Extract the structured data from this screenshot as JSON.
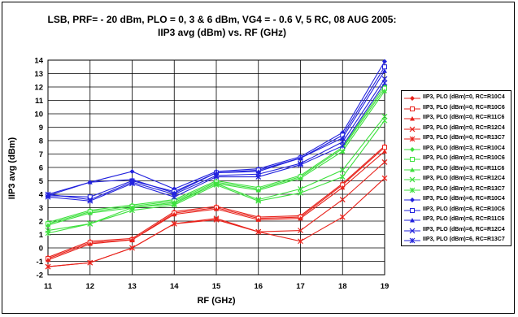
{
  "chart_data": {
    "type": "line",
    "title_line1": "LSB, PRF= - 20 dBm, PLO = 0, 3 & 6 dBm, VG4 = - 0.6 V, 5 RC, 08 AUG 2005:",
    "title_line2": "IIP3 avg (dBm) vs. RF (GHz)",
    "xlabel": "RF (GHz)",
    "ylabel": "IIP3 avg (dBm)",
    "xlim": [
      11,
      19
    ],
    "ylim": [
      -2,
      14
    ],
    "x_ticks": [
      "11",
      "12",
      "13",
      "14",
      "15",
      "16",
      "17",
      "18",
      "19"
    ],
    "y_ticks": [
      "-2",
      "-1",
      "0",
      "1",
      "2",
      "3",
      "4",
      "5",
      "6",
      "7",
      "8",
      "9",
      "10",
      "11",
      "12",
      "13",
      "14"
    ],
    "grid": true,
    "legend_position": "right",
    "x": [
      11,
      12,
      13,
      14,
      15,
      16,
      17,
      18,
      19
    ],
    "series": [
      {
        "name": "IIP3, PLO (dBm)=0, RC=R10C4",
        "color": "#e8221b",
        "marker": "diamond",
        "values": [
          -0.7,
          0.5,
          0.7,
          2.7,
          3.1,
          2.3,
          2.4,
          4.8,
          7.6
        ]
      },
      {
        "name": "IIP3, PLO (dBm)=0, RC=R10C6",
        "color": "#e8221b",
        "marker": "square",
        "values": [
          -0.8,
          0.4,
          0.6,
          2.6,
          3.0,
          2.2,
          2.3,
          4.7,
          7.5
        ]
      },
      {
        "name": "IIP3, PLO (dBm)=0, RC=R11C6",
        "color": "#e8221b",
        "marker": "triangle",
        "values": [
          -0.9,
          0.3,
          0.6,
          2.5,
          2.9,
          2.1,
          2.2,
          4.5,
          7.2
        ]
      },
      {
        "name": "IIP3, PLO (dBm)=0, RC=R12C4",
        "color": "#e8221b",
        "marker": "x",
        "values": [
          -1.4,
          -1.1,
          0.0,
          1.8,
          2.2,
          1.2,
          1.3,
          3.6,
          6.4
        ]
      },
      {
        "name": "IIP3, PLO (dBm)=0, RC=R13C7",
        "color": "#e8221b",
        "marker": "star",
        "values": [
          -1.4,
          -1.1,
          0.0,
          1.8,
          2.1,
          1.2,
          0.5,
          2.3,
          5.2
        ]
      },
      {
        "name": "IIP3, PLO (dBm)=3, RC=R10C4",
        "color": "#3ee03e",
        "marker": "diamond",
        "values": [
          1.9,
          2.8,
          3.2,
          3.6,
          5.0,
          4.5,
          5.4,
          7.5,
          12.1
        ]
      },
      {
        "name": "IIP3, PLO (dBm)=3, RC=R10C6",
        "color": "#3ee03e",
        "marker": "square",
        "values": [
          1.8,
          2.7,
          3.1,
          3.5,
          4.9,
          4.4,
          5.3,
          7.4,
          11.9
        ]
      },
      {
        "name": "IIP3, PLO (dBm)=3, RC=R11C6",
        "color": "#3ee03e",
        "marker": "triangle",
        "values": [
          1.7,
          2.6,
          3.0,
          3.4,
          4.8,
          4.3,
          5.2,
          7.2,
          11.7
        ]
      },
      {
        "name": "IIP3, PLO (dBm)=3, RC=R12C4",
        "color": "#3ee03e",
        "marker": "x",
        "values": [
          1.3,
          1.8,
          3.0,
          3.3,
          4.8,
          3.6,
          4.4,
          5.8,
          9.8
        ]
      },
      {
        "name": "IIP3, PLO (dBm)=3, RC=R13C7",
        "color": "#3ee03e",
        "marker": "star",
        "values": [
          1.1,
          1.8,
          2.8,
          3.2,
          4.7,
          3.5,
          4.1,
          5.3,
          9.5
        ]
      },
      {
        "name": "IIP3, PLO (dBm)=6, RC=R10C4",
        "color": "#2222dd",
        "marker": "diamond",
        "values": [
          4.0,
          4.9,
          5.7,
          4.4,
          5.7,
          5.9,
          6.8,
          8.6,
          13.9
        ]
      },
      {
        "name": "IIP3, PLO (dBm)=6, RC=R10C6",
        "color": "#2222dd",
        "marker": "square",
        "values": [
          3.9,
          3.8,
          5.0,
          4.2,
          5.6,
          5.8,
          6.7,
          8.4,
          13.5
        ]
      },
      {
        "name": "IIP3, PLO (dBm)=6, RC=R11C6",
        "color": "#2222dd",
        "marker": "triangle",
        "values": [
          3.9,
          4.9,
          5.1,
          4.1,
          5.6,
          5.7,
          6.7,
          8.2,
          13.2
        ]
      },
      {
        "name": "IIP3, PLO (dBm)=6, RC=R12C4",
        "color": "#2222dd",
        "marker": "x",
        "values": [
          4.0,
          3.6,
          4.9,
          4.0,
          5.4,
          5.5,
          6.3,
          7.9,
          12.6
        ]
      },
      {
        "name": "IIP3, PLO (dBm)=6, RC=R13C7",
        "color": "#2222dd",
        "marker": "star",
        "values": [
          3.8,
          3.5,
          4.8,
          3.8,
          5.3,
          5.3,
          6.2,
          7.6,
          12.3
        ]
      }
    ]
  }
}
